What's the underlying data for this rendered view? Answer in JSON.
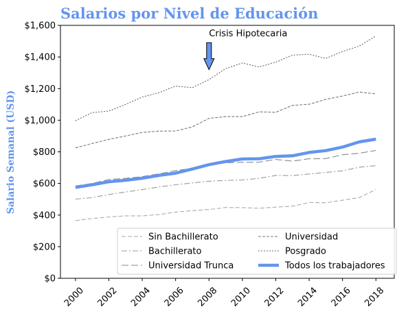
{
  "chart_data": {
    "type": "line",
    "title": "Salarios por Nivel de Educación",
    "ylabel": "Salario Semanal (USD)",
    "xlabel": "",
    "x": [
      2000,
      2001,
      2002,
      2003,
      2004,
      2005,
      2006,
      2007,
      2008,
      2009,
      2010,
      2011,
      2012,
      2013,
      2014,
      2015,
      2016,
      2017,
      2018
    ],
    "xticks": [
      2000,
      2002,
      2004,
      2006,
      2008,
      2010,
      2012,
      2014,
      2016,
      2018
    ],
    "xlim": [
      1999.1,
      2019.1
    ],
    "ylim": [
      0,
      1600
    ],
    "yticks": [
      0,
      200,
      400,
      600,
      800,
      1000,
      1200,
      1400,
      1600
    ],
    "ytick_labels": [
      "$0",
      "$200",
      "$400",
      "$600",
      "$800",
      "$1,000",
      "$1,200",
      "$1,400",
      "$1,600"
    ],
    "legend_position": "lower-right",
    "series": [
      {
        "name": "Sin Bachillerato",
        "style": "dashed-light",
        "color": "#aaaaaa",
        "values": [
          365,
          378,
          388,
          395,
          395,
          403,
          419,
          428,
          435,
          448,
          447,
          443,
          450,
          456,
          479,
          478,
          494,
          511,
          561
        ]
      },
      {
        "name": "Bachillerato",
        "style": "dashdot",
        "color": "#999999",
        "values": [
          501,
          511,
          530,
          546,
          561,
          578,
          592,
          603,
          614,
          619,
          622,
          632,
          651,
          650,
          660,
          670,
          680,
          703,
          713
        ]
      },
      {
        "name": "Universidad Trunca",
        "style": "longdash",
        "color": "#888888",
        "values": [
          584,
          600,
          625,
          632,
          643,
          661,
          681,
          695,
          720,
          730,
          734,
          735,
          752,
          741,
          756,
          757,
          782,
          791,
          809
        ]
      },
      {
        "name": "Universidad",
        "style": "dashed-dark",
        "color": "#777777",
        "values": [
          825,
          853,
          879,
          900,
          923,
          931,
          932,
          958,
          1012,
          1023,
          1023,
          1053,
          1050,
          1094,
          1101,
          1132,
          1153,
          1178,
          1167
        ]
      },
      {
        "name": "Posgrado",
        "style": "dotted",
        "color": "#666666",
        "values": [
          997,
          1048,
          1058,
          1100,
          1147,
          1174,
          1216,
          1206,
          1257,
          1327,
          1362,
          1337,
          1367,
          1412,
          1417,
          1391,
          1435,
          1469,
          1533
        ]
      },
      {
        "name": "Todos los trabajadores",
        "style": "thick",
        "color": "#6495ed",
        "values": [
          575,
          592,
          611,
          620,
          633,
          651,
          665,
          691,
          719,
          739,
          755,
          756,
          771,
          775,
          796,
          808,
          830,
          863,
          880
        ]
      }
    ],
    "annotations": [
      {
        "text": "Crisis Hipotecaria",
        "x": 2008,
        "y": 1495,
        "arrow_to_y": 1320,
        "arrow_color": "#6495ed"
      }
    ]
  }
}
